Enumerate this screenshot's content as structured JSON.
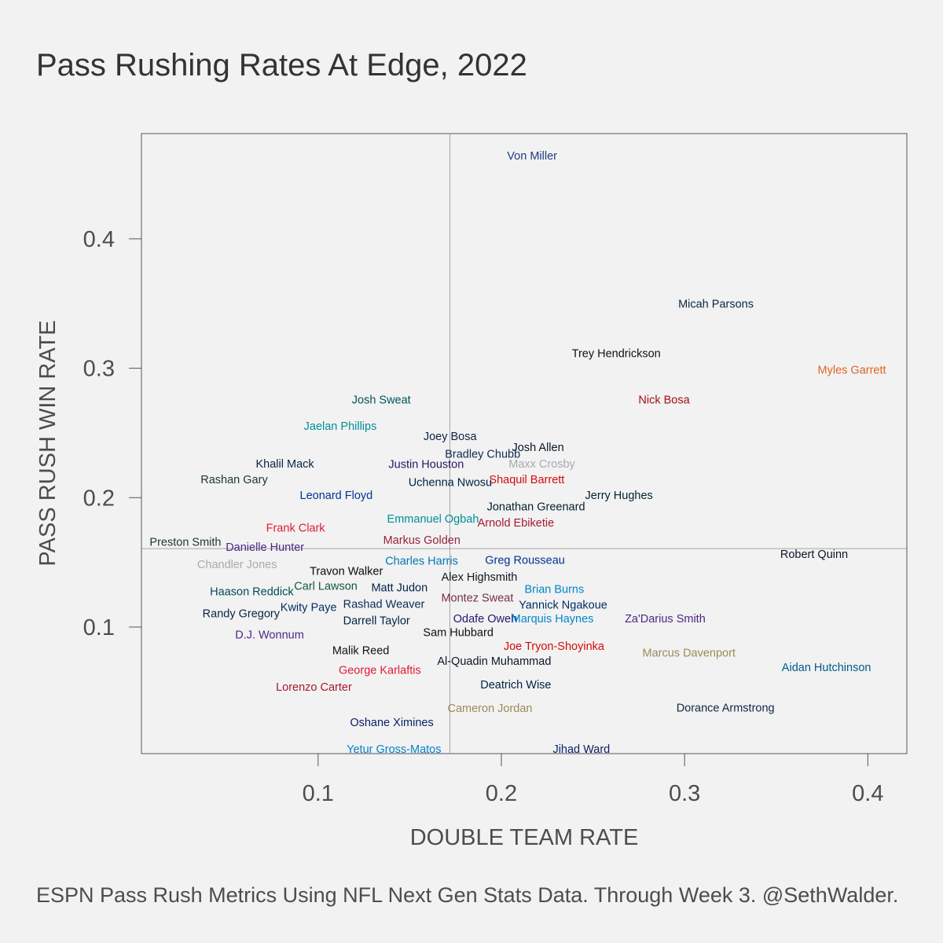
{
  "chart_data": {
    "type": "scatter",
    "title": "Pass Rushing Rates At Edge, 2022",
    "xlabel": "DOUBLE TEAM RATE",
    "ylabel": "PASS RUSH WIN RATE",
    "caption": "ESPN Pass Rush Metrics Using NFL Next Gen Stats Data. Through Week 3. @SethWalder.",
    "xlim": [
      0.0036,
      0.4213
    ],
    "ylim": [
      0.0022,
      0.4813
    ],
    "xticks": [
      {
        "value": 0.1,
        "label": "0.1"
      },
      {
        "value": 0.2,
        "label": "0.2"
      },
      {
        "value": 0.3,
        "label": "0.3"
      },
      {
        "value": 0.4,
        "label": "0.4"
      }
    ],
    "yticks": [
      {
        "value": 0.1,
        "label": "0.1"
      },
      {
        "value": 0.2,
        "label": "0.2"
      },
      {
        "value": 0.3,
        "label": "0.3"
      },
      {
        "value": 0.4,
        "label": "0.4"
      }
    ],
    "reference_lines": {
      "x_mean": 0.1719,
      "y_mean": 0.1606
    },
    "points": [
      {
        "name": "Von Miller",
        "x": 0.2168,
        "y": 0.4643,
        "color": "#203b80"
      },
      {
        "name": "Micah Parsons",
        "x": 0.3171,
        "y": 0.3497,
        "color": "#0d2744"
      },
      {
        "name": "Trey Hendrickson",
        "x": 0.2627,
        "y": 0.3116,
        "color": "#111111"
      },
      {
        "name": "Myles Garrett",
        "x": 0.3913,
        "y": 0.2989,
        "color": "#e06325"
      },
      {
        "name": "Nick Bosa",
        "x": 0.2888,
        "y": 0.2759,
        "color": "#a50e14"
      },
      {
        "name": "Josh Sweat",
        "x": 0.1345,
        "y": 0.2759,
        "color": "#005454"
      },
      {
        "name": "Jaelan Phillips",
        "x": 0.1121,
        "y": 0.2553,
        "color": "#008e97"
      },
      {
        "name": "Joey Bosa",
        "x": 0.172,
        "y": 0.2474,
        "color": "#0c2344"
      },
      {
        "name": "Josh Allen",
        "x": 0.22,
        "y": 0.2389,
        "color": "#0a1525"
      },
      {
        "name": "Bradley Chubb",
        "x": 0.1898,
        "y": 0.234,
        "color": "#0d2a52"
      },
      {
        "name": "Khalil Mack",
        "x": 0.0819,
        "y": 0.2262,
        "color": "#0c2344"
      },
      {
        "name": "Maxx Crosby",
        "x": 0.2221,
        "y": 0.2262,
        "color": "#a5acaf"
      },
      {
        "name": "Justin Houston",
        "x": 0.159,
        "y": 0.2259,
        "color": "#2a1565"
      },
      {
        "name": "Rashan Gary",
        "x": 0.0542,
        "y": 0.2141,
        "color": "#203731"
      },
      {
        "name": "Shaquil Barrett",
        "x": 0.2139,
        "y": 0.2141,
        "color": "#d50a0a"
      },
      {
        "name": "Uchenna Nwosu",
        "x": 0.1721,
        "y": 0.2119,
        "color": "#002244"
      },
      {
        "name": "Leonard Floyd",
        "x": 0.1099,
        "y": 0.2019,
        "color": "#003594"
      },
      {
        "name": "Jerry Hughes",
        "x": 0.2642,
        "y": 0.2019,
        "color": "#03202f"
      },
      {
        "name": "Jonathan Greenard",
        "x": 0.2189,
        "y": 0.1931,
        "color": "#03202f"
      },
      {
        "name": "Emmanuel Ogbah",
        "x": 0.1627,
        "y": 0.1837,
        "color": "#008e97"
      },
      {
        "name": "Arnold Ebiketie",
        "x": 0.2079,
        "y": 0.1806,
        "color": "#a71930"
      },
      {
        "name": "Frank Clark",
        "x": 0.0877,
        "y": 0.1767,
        "color": "#e31837"
      },
      {
        "name": "Markus Golden",
        "x": 0.1566,
        "y": 0.1673,
        "color": "#97233f"
      },
      {
        "name": "Preston Smith",
        "x": 0.0276,
        "y": 0.1658,
        "color": "#203731"
      },
      {
        "name": "Danielle Hunter",
        "x": 0.071,
        "y": 0.1618,
        "color": "#4f2683"
      },
      {
        "name": "Robert Quinn",
        "x": 0.3707,
        "y": 0.1564,
        "color": "#0b162a"
      },
      {
        "name": "Greg Rousseau",
        "x": 0.2129,
        "y": 0.1518,
        "color": "#00338d"
      },
      {
        "name": "Charles Harris",
        "x": 0.1565,
        "y": 0.1512,
        "color": "#0076b6"
      },
      {
        "name": "Chandler Jones",
        "x": 0.0558,
        "y": 0.1484,
        "color": "#a5acaf"
      },
      {
        "name": "Travon Walker",
        "x": 0.1154,
        "y": 0.1433,
        "color": "#0a0a0a"
      },
      {
        "name": "Alex Highsmith",
        "x": 0.188,
        "y": 0.1388,
        "color": "#101820"
      },
      {
        "name": "Carl Lawson",
        "x": 0.1042,
        "y": 0.1318,
        "color": "#125740"
      },
      {
        "name": "Matt Judon",
        "x": 0.1444,
        "y": 0.1306,
        "color": "#002244"
      },
      {
        "name": "Brian Burns",
        "x": 0.2289,
        "y": 0.1293,
        "color": "#0085ca"
      },
      {
        "name": "Haason Reddick",
        "x": 0.0638,
        "y": 0.1275,
        "color": "#004c54"
      },
      {
        "name": "Montez Sweat",
        "x": 0.1869,
        "y": 0.1227,
        "color": "#773141"
      },
      {
        "name": "Rashad Weaver",
        "x": 0.1359,
        "y": 0.1178,
        "color": "#0c2c56"
      },
      {
        "name": "Yannick Ngakoue",
        "x": 0.2337,
        "y": 0.1172,
        "color": "#002c5f"
      },
      {
        "name": "Kwity Paye",
        "x": 0.0948,
        "y": 0.1154,
        "color": "#002c5f"
      },
      {
        "name": "Randy Gregory",
        "x": 0.058,
        "y": 0.1106,
        "color": "#0a2343"
      },
      {
        "name": "Odafe Oweh",
        "x": 0.1912,
        "y": 0.1066,
        "color": "#241773"
      },
      {
        "name": "Marquis Haynes",
        "x": 0.2279,
        "y": 0.1066,
        "color": "#0085ca"
      },
      {
        "name": "Za'Darius Smith",
        "x": 0.2894,
        "y": 0.1066,
        "color": "#4f2683"
      },
      {
        "name": "Darrell Taylor",
        "x": 0.1319,
        "y": 0.1051,
        "color": "#002244"
      },
      {
        "name": "D.J. Wonnum",
        "x": 0.0735,
        "y": 0.0942,
        "color": "#4f2683"
      },
      {
        "name": "Sam Hubbard",
        "x": 0.1765,
        "y": 0.096,
        "color": "#101010"
      },
      {
        "name": "Joe Tryon-Shoyinka",
        "x": 0.2287,
        "y": 0.0854,
        "color": "#d50a0a"
      },
      {
        "name": "Malik Reed",
        "x": 0.1233,
        "y": 0.082,
        "color": "#111111"
      },
      {
        "name": "Marcus Davenport",
        "x": 0.3024,
        "y": 0.0802,
        "color": "#9f8958"
      },
      {
        "name": "Al-Quadin Muhammad",
        "x": 0.1961,
        "y": 0.0739,
        "color": "#0b162a"
      },
      {
        "name": "Aidan Hutchinson",
        "x": 0.3774,
        "y": 0.069,
        "color": "#005a8b"
      },
      {
        "name": "George Karlaftis",
        "x": 0.1337,
        "y": 0.0669,
        "color": "#e31837"
      },
      {
        "name": "Deatrich Wise",
        "x": 0.2079,
        "y": 0.0557,
        "color": "#002244"
      },
      {
        "name": "Lorenzo Carter",
        "x": 0.0977,
        "y": 0.0539,
        "color": "#a71930"
      },
      {
        "name": "Cameron Jordan",
        "x": 0.1938,
        "y": 0.0375,
        "color": "#9f8958"
      },
      {
        "name": "Dorance Armstrong",
        "x": 0.3223,
        "y": 0.0378,
        "color": "#0d2744"
      },
      {
        "name": "Oshane Ximines",
        "x": 0.1402,
        "y": 0.0266,
        "color": "#0b2265"
      },
      {
        "name": "Yetur Gross-Matos",
        "x": 0.1414,
        "y": 0.0057,
        "color": "#0085ca"
      },
      {
        "name": "Jihad Ward",
        "x": 0.2437,
        "y": 0.0057,
        "color": "#0b2265"
      }
    ]
  }
}
